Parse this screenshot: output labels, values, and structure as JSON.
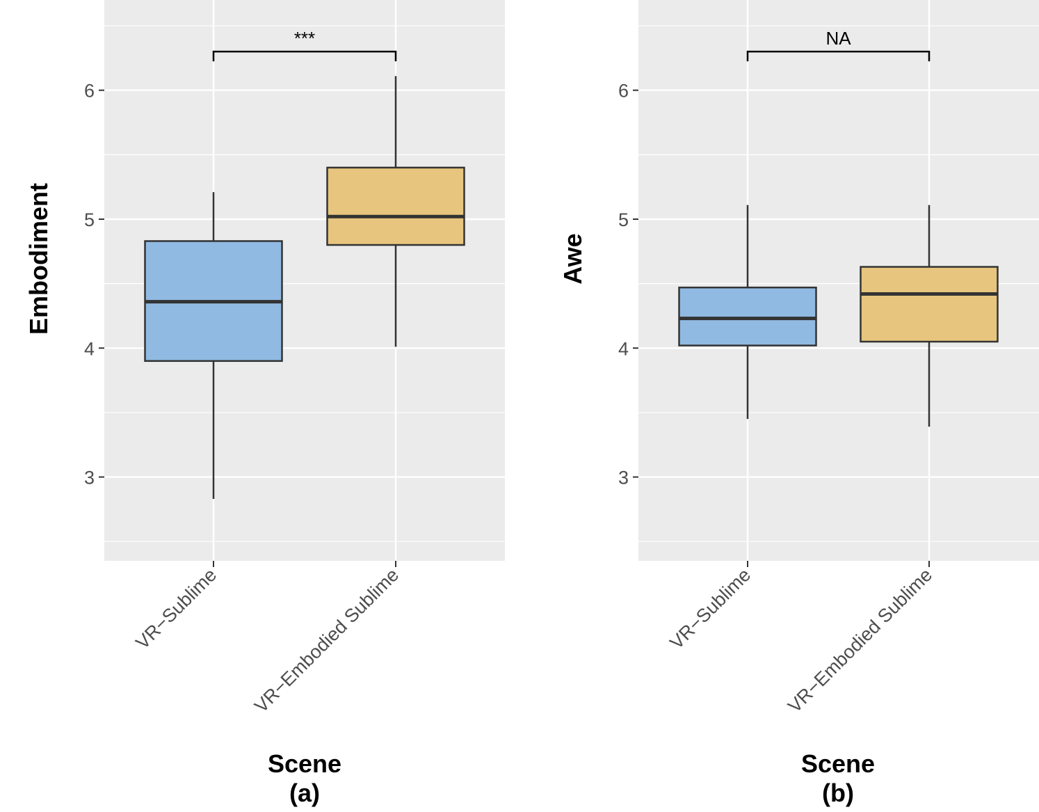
{
  "chart_data": [
    {
      "type": "box",
      "panel": "(a)",
      "xlabel": "Scene",
      "ylabel": "Embodiment",
      "ylim": [
        2.35,
        6.7
      ],
      "yticks": [
        3,
        4,
        5,
        6
      ],
      "categories": [
        "VR−Sublime",
        "VR−Embodied Sublime"
      ],
      "boxes": [
        {
          "category": "VR−Sublime",
          "whisker_low": 2.83,
          "q1": 3.9,
          "median": 4.36,
          "q3": 4.83,
          "whisker_high": 5.21,
          "color": "#91bae2"
        },
        {
          "category": "VR−Embodied Sublime",
          "whisker_low": 4.01,
          "q1": 4.8,
          "median": 5.02,
          "q3": 5.4,
          "whisker_high": 6.11,
          "color": "#e8c57e"
        }
      ],
      "significance": {
        "label": "***",
        "y": 6.3
      }
    },
    {
      "type": "box",
      "panel": "(b)",
      "xlabel": "Scene",
      "ylabel": "Awe",
      "ylim": [
        2.35,
        6.7
      ],
      "yticks": [
        3,
        4,
        5,
        6
      ],
      "categories": [
        "VR−Sublime",
        "VR−Embodied Sublime"
      ],
      "boxes": [
        {
          "category": "VR−Sublime",
          "whisker_low": 3.45,
          "q1": 4.02,
          "median": 4.23,
          "q3": 4.47,
          "whisker_high": 5.11,
          "color": "#91bae2"
        },
        {
          "category": "VR−Embodied Sublime",
          "whisker_low": 3.39,
          "q1": 4.05,
          "median": 4.42,
          "q3": 4.63,
          "whisker_high": 5.11,
          "color": "#e8c57e"
        }
      ],
      "significance": {
        "label": "NA",
        "y": 6.3
      }
    }
  ],
  "colors": {
    "panel_background": "#ebebeb",
    "gridline": "#ffffff",
    "box_outline": "#333333",
    "tick_text": "#4d4d4d"
  }
}
